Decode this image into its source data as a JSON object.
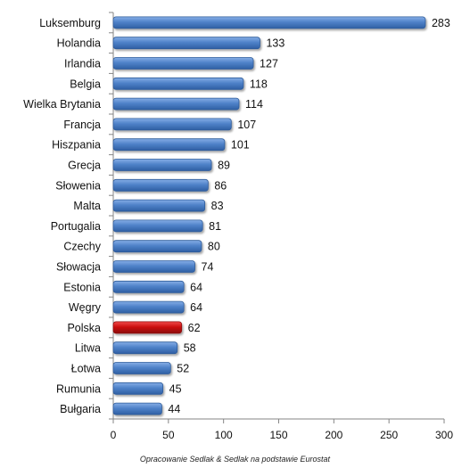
{
  "chart_data": {
    "type": "bar",
    "orientation": "horizontal",
    "categories": [
      "Luksemburg",
      "Holandia",
      "Irlandia",
      "Belgia",
      "Wielka Brytania",
      "Francja",
      "Hiszpania",
      "Grecja",
      "Słowenia",
      "Malta",
      "Portugalia",
      "Czechy",
      "Słowacja",
      "Estonia",
      "Węgry",
      "Polska",
      "Litwa",
      "Łotwa",
      "Rumunia",
      "Bułgaria"
    ],
    "values": [
      283,
      133,
      127,
      118,
      114,
      107,
      101,
      89,
      86,
      83,
      81,
      80,
      74,
      64,
      64,
      62,
      58,
      52,
      45,
      44
    ],
    "highlight": "Polska",
    "xlim": [
      0,
      300
    ],
    "xticks": [
      0,
      50,
      100,
      150,
      200,
      250,
      300
    ],
    "grid": false,
    "legend": "none",
    "colors": {
      "bar": "#4a7cc4",
      "bar_dark": "#2e5b9a",
      "highlight": "#d11a1a",
      "highlight_dark": "#8e0b0b",
      "axis": "#868686"
    }
  },
  "source_note": "Opracowanie Sedlak & Sedlak na podstawie Eurostat"
}
